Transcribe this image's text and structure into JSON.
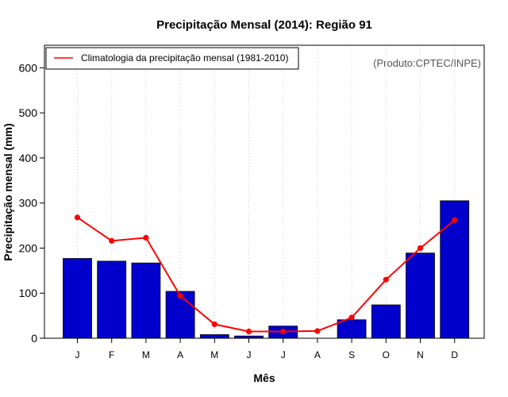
{
  "chart_data": {
    "type": "bar",
    "title": "Precipitação Mensal (2014): Região 91",
    "xlabel": "Mês",
    "ylabel": "Precipitação mensal (mm)",
    "credit": "(Produto:CPTEC/INPE)",
    "categories": [
      "J",
      "F",
      "M",
      "A",
      "M",
      "J",
      "J",
      "A",
      "S",
      "O",
      "N",
      "D"
    ],
    "ylim": [
      0,
      650
    ],
    "yticks": [
      "0",
      "100",
      "200",
      "300",
      "400",
      "500",
      "600"
    ],
    "grid": "vertical-dotted",
    "legend_position": "top-left",
    "series": [
      {
        "name": "Precipitação mensal (2014)",
        "type": "bar",
        "color": "#0000cd",
        "values": [
          177,
          171,
          167,
          104,
          8,
          5,
          27,
          0,
          41,
          74,
          189,
          305
        ]
      },
      {
        "name": "Climatologia da precipitação mensal (1981-2010)",
        "type": "line",
        "color": "#ff0000",
        "values": [
          268,
          216,
          223,
          94,
          31,
          15,
          15,
          16,
          46,
          130,
          200,
          262
        ]
      }
    ]
  }
}
